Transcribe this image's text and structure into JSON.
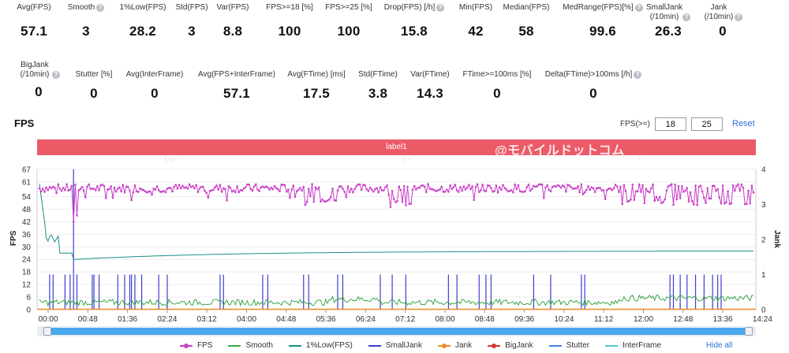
{
  "stats_row1": [
    {
      "label": "Avg(FPS)",
      "value": "57.1",
      "help": false
    },
    {
      "label": "Smooth",
      "value": "3",
      "help": true
    },
    {
      "label": "1%Low(FPS)",
      "value": "28.2",
      "help": false
    },
    {
      "label": "Std(FPS)",
      "value": "3",
      "help": false
    },
    {
      "label": "Var(FPS)",
      "value": "8.8",
      "help": false
    },
    {
      "label": "FPS>=18 [%]",
      "value": "100",
      "help": false
    },
    {
      "label": "FPS>=25 [%]",
      "value": "100",
      "help": false
    },
    {
      "label": "Drop(FPS) [/h]",
      "value": "15.8",
      "help": true
    },
    {
      "label": "Min(FPS)",
      "value": "42",
      "help": false
    },
    {
      "label": "Median(FPS)",
      "value": "58",
      "help": false
    },
    {
      "label": "MedRange(FPS)[%]",
      "value": "99.6",
      "help": true
    },
    {
      "label": "SmallJank (/10min)",
      "value": "26.3",
      "help": true
    },
    {
      "label": "Jank (/10min)",
      "value": "0",
      "help": true
    }
  ],
  "stats_row2": [
    {
      "label": "BigJank (/10min)",
      "value": "0",
      "help": true
    },
    {
      "label": "Stutter [%]",
      "value": "0",
      "help": false
    },
    {
      "label": "Avg(InterFrame)",
      "value": "0",
      "help": false
    },
    {
      "label": "Avg(FPS+InterFrame)",
      "value": "57.1",
      "help": false
    },
    {
      "label": "Avg(FTime) [ms]",
      "value": "17.5",
      "help": false
    },
    {
      "label": "Std(FTime)",
      "value": "3.8",
      "help": false
    },
    {
      "label": "Var(FTime)",
      "value": "14.3",
      "help": false
    },
    {
      "label": "FTime>=100ms [%]",
      "value": "0",
      "help": false
    },
    {
      "label": "Delta(FTime)>100ms [/h]",
      "value": "0",
      "help": true
    }
  ],
  "section_title": "FPS",
  "fps_filter": {
    "label": "FPS(>=)",
    "value1": "18",
    "value2": "25"
  },
  "reset_label": "Reset",
  "label_bar_text": "label1",
  "watermark_text": "@モバイルドットコム",
  "watermark_small": "PerfDog",
  "chart_data": {
    "type": "line",
    "xlabel": "",
    "ylabel": "FPS",
    "y2label": "Jank",
    "ylim": [
      0,
      67
    ],
    "y2lim": [
      0,
      4
    ],
    "yticks": [
      "0",
      "6",
      "12",
      "18",
      "24",
      "30",
      "36",
      "42",
      "48",
      "54",
      "61",
      "67"
    ],
    "y2ticks": [
      "0",
      "1",
      "2",
      "3",
      "4"
    ],
    "xticks": [
      "00:00",
      "00:48",
      "01:36",
      "02:24",
      "03:12",
      "04:00",
      "04:48",
      "05:36",
      "06:24",
      "07:12",
      "08:00",
      "08:48",
      "09:36",
      "10:24",
      "11:12",
      "12:00",
      "12:48",
      "13:36",
      "14:24"
    ],
    "series": [
      {
        "name": "FPS",
        "color": "#c93fc7",
        "summary": "mostly 57-60 fps, dips to ~42-50"
      },
      {
        "name": "Smooth",
        "color": "#3aa64a"
      },
      {
        "name": "1%Low(FPS)",
        "color": "#1a8f86",
        "summary": "starts ~60, drops to ~24, gradually rises to ~28"
      },
      {
        "name": "SmallJank",
        "color": "#3b3fd0"
      },
      {
        "name": "Jank",
        "color": "#f08a24"
      },
      {
        "name": "BigJank",
        "color": "#d9332b"
      },
      {
        "name": "Stutter",
        "color": "#3d86e0"
      },
      {
        "name": "InterFrame",
        "color": "#4fc8d8"
      }
    ]
  },
  "legend": [
    {
      "label": "FPS",
      "color": "#c93fc7",
      "dot": true
    },
    {
      "label": "Smooth",
      "color": "#3aa64a",
      "dot": false
    },
    {
      "label": "1%Low(FPS)",
      "color": "#1a8f86",
      "dot": false
    },
    {
      "label": "SmallJank",
      "color": "#3b3fd0",
      "dot": false
    },
    {
      "label": "Jank",
      "color": "#f08a24",
      "dot": true
    },
    {
      "label": "BigJank",
      "color": "#d9332b",
      "dot": true
    },
    {
      "label": "Stutter",
      "color": "#3d86e0",
      "dot": false
    },
    {
      "label": "InterFrame",
      "color": "#4fc8d8",
      "dot": false
    }
  ],
  "hide_all_label": "Hide all"
}
